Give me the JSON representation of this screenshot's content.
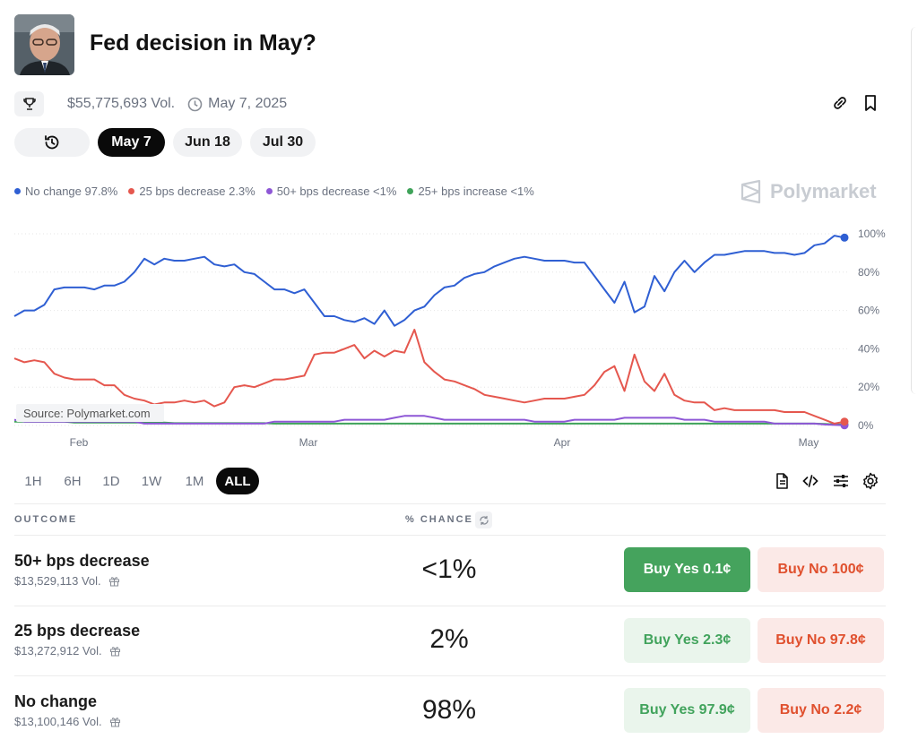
{
  "market": {
    "title": "Fed decision in May?",
    "volume": "$55,775,693 Vol.",
    "end_date": "May 7, 2025"
  },
  "date_pills": [
    "May 7",
    "Jun 18",
    "Jul 30"
  ],
  "legend": [
    {
      "label": "No change 97.8%",
      "color": "#2f5fd3"
    },
    {
      "label": "25 bps decrease 2.3%",
      "color": "#e5574e"
    },
    {
      "label": "50+ bps decrease <1%",
      "color": "#8e57d6"
    },
    {
      "label": "25+ bps increase <1%",
      "color": "#3fa35a"
    }
  ],
  "brand": "Polymarket",
  "source": "Source: Polymarket.com",
  "time_ranges": [
    "1H",
    "6H",
    "1D",
    "1W",
    "1M",
    "ALL"
  ],
  "active_range": "ALL",
  "table": {
    "col_outcome": "OUTCOME",
    "col_chance": "% CHANCE",
    "rows": [
      {
        "name": "50+ bps decrease",
        "volume": "$13,529,113 Vol.",
        "chance": "<1%",
        "buy_yes": "Buy Yes 0.1¢",
        "buy_no": "Buy No 100¢"
      },
      {
        "name": "25 bps decrease",
        "volume": "$13,272,912 Vol.",
        "chance": "2%",
        "buy_yes": "Buy Yes 2.3¢",
        "buy_no": "Buy No 97.8¢"
      },
      {
        "name": "No change",
        "volume": "$13,100,146 Vol.",
        "chance": "98%",
        "buy_yes": "Buy Yes 97.9¢",
        "buy_no": "Buy No 2.2¢"
      }
    ]
  },
  "icons": {
    "trophy": "trophy-icon",
    "clock": "clock-icon",
    "link": "link-icon",
    "bookmark": "bookmark-icon",
    "history": "history-icon",
    "document": "document-icon",
    "embed": "code-icon",
    "filter": "sliders-icon",
    "settings": "gear-icon",
    "refresh": "refresh-icon",
    "gift": "gift-icon"
  },
  "chart_data": {
    "type": "line",
    "x_ticks": [
      "Feb",
      "Mar",
      "Apr",
      "May"
    ],
    "y_ticks": [
      "100%",
      "80%",
      "60%",
      "40%",
      "20%",
      "0%"
    ],
    "ylim": [
      0,
      100
    ],
    "series": [
      {
        "name": "No change",
        "color": "#2f5fd3",
        "values": [
          57,
          60,
          60,
          63,
          71,
          72,
          72,
          72,
          71,
          73,
          73,
          75,
          80,
          87,
          84,
          87,
          86,
          86,
          87,
          88,
          84,
          83,
          84,
          80,
          79,
          75,
          71,
          71,
          69,
          71,
          64,
          57,
          57,
          55,
          54,
          56,
          53,
          60,
          52,
          55,
          60,
          62,
          68,
          72,
          73,
          77,
          79,
          80,
          83,
          85,
          87,
          88,
          87,
          86,
          86,
          86,
          85,
          85,
          78,
          71,
          64,
          75,
          59,
          62,
          78,
          70,
          80,
          86,
          80,
          85,
          89,
          89,
          90,
          91,
          91,
          91,
          90,
          90,
          89,
          90,
          94,
          95,
          99,
          98
        ]
      },
      {
        "name": "25 bps decrease",
        "color": "#e5574e",
        "values": [
          35,
          33,
          34,
          33,
          27,
          25,
          24,
          24,
          24,
          21,
          21,
          16,
          14,
          13,
          11,
          12,
          12,
          13,
          12,
          13,
          10,
          12,
          20,
          21,
          20,
          22,
          24,
          24,
          25,
          26,
          37,
          38,
          38,
          40,
          42,
          35,
          39,
          36,
          39,
          38,
          50,
          33,
          28,
          24,
          23,
          21,
          19,
          16,
          15,
          14,
          13,
          12,
          13,
          14,
          14,
          14,
          15,
          16,
          21,
          28,
          31,
          18,
          37,
          23,
          18,
          27,
          16,
          13,
          12,
          12,
          8,
          9,
          8,
          8,
          8,
          8,
          8,
          7,
          7,
          7,
          5,
          3,
          1,
          2
        ]
      },
      {
        "name": "50+ bps decrease",
        "color": "#8e57d6",
        "values": [
          3,
          2,
          2,
          2,
          2,
          2,
          2,
          2,
          2,
          2,
          2,
          2,
          2,
          1,
          1,
          1,
          1,
          1,
          1,
          1,
          1,
          1,
          1,
          1,
          1,
          1,
          2,
          2,
          2,
          2,
          2,
          2,
          2,
          3,
          3,
          3,
          3,
          3,
          4,
          5,
          5,
          5,
          4,
          3,
          3,
          3,
          3,
          3,
          3,
          3,
          3,
          3,
          2,
          2,
          2,
          2,
          3,
          3,
          3,
          3,
          3,
          4,
          4,
          4,
          4,
          4,
          4,
          3,
          3,
          3,
          2,
          2,
          2,
          2,
          2,
          2,
          1,
          1,
          1,
          1,
          1,
          0.5,
          0.3,
          0.1
        ]
      },
      {
        "name": "25+ bps increase",
        "color": "#3fa35a",
        "values": [
          2,
          2,
          2,
          2,
          2,
          2,
          1.5,
          1.5,
          1.5,
          1.5,
          1.5,
          1.5,
          1.5,
          1.5,
          1.5,
          1.5,
          1.2,
          1.2,
          1.2,
          1.2,
          1.2,
          1.2,
          1.2,
          1.2,
          1.2,
          1.2,
          1,
          1,
          1,
          1,
          1,
          1,
          1,
          1,
          1,
          1,
          1,
          1,
          1,
          1,
          1,
          1,
          1,
          1,
          1,
          1,
          1,
          1,
          1,
          1,
          1,
          1,
          1,
          1,
          1,
          1,
          1,
          1,
          1,
          1,
          1,
          1,
          1,
          1,
          1,
          1,
          1,
          1,
          1,
          1,
          1,
          1,
          1,
          1,
          1,
          1,
          1,
          1,
          1,
          1,
          1,
          0.8,
          0.6,
          0.5
        ]
      }
    ]
  }
}
